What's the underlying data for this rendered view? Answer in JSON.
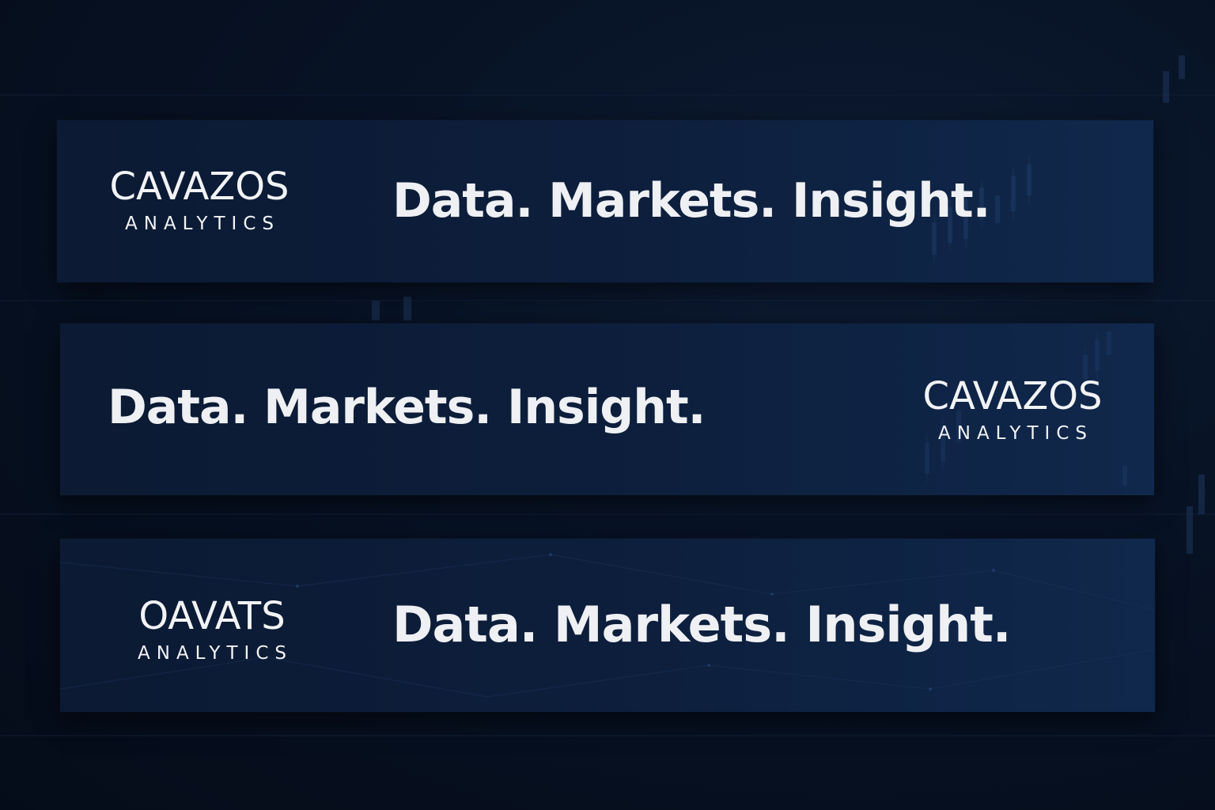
{
  "banners": [
    {
      "logo_name": "CAVAZOS",
      "logo_sub": "ANALYTICS",
      "tagline": "Data. Markets. Insight.",
      "logo_position": "left"
    },
    {
      "logo_name": "CAVAZOS",
      "logo_sub": "ANALYTICS",
      "tagline": "Data. Markets. Insight.",
      "logo_position": "right"
    },
    {
      "logo_name": "OAVATS",
      "logo_sub": "ANALYTICS",
      "tagline": "Data. Markets. Insight.",
      "logo_position": "left"
    }
  ],
  "colors": {
    "background": "#071224",
    "banner": "#0d1f3d",
    "text": "#f2f3f5"
  }
}
